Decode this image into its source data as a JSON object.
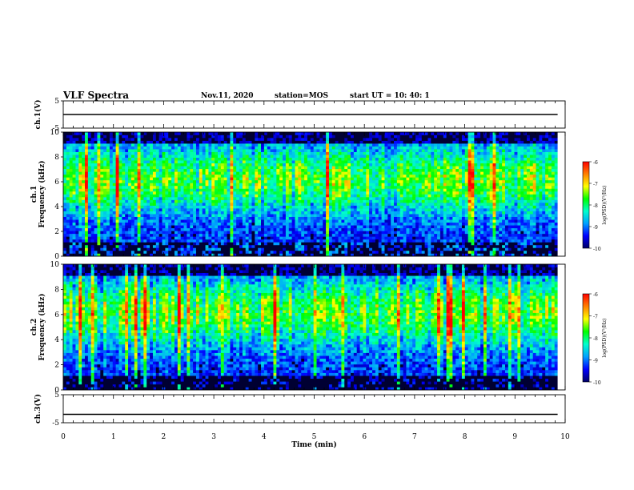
{
  "header": {
    "title": "VLF Spectra",
    "date": "Nov.11, 2020",
    "station": "station=MOS",
    "start": "start UT =  10: 40: 1"
  },
  "colors": {
    "colormap": [
      "#000066",
      "#0000ff",
      "#00a0ff",
      "#00ffcc",
      "#00ff00",
      "#ffff00",
      "#ff8000",
      "#ff0000"
    ],
    "trace": "#000000",
    "axis": "#000000"
  },
  "chart_data": [
    {
      "type": "line",
      "panel": "ch1-voltage",
      "ylabel": "ch.1(V)",
      "ylim": [
        -5,
        5
      ],
      "yticks": [
        "5",
        "-5"
      ],
      "xlim": [
        0,
        10
      ],
      "series": [
        {
          "x": [
            0,
            9.85
          ],
          "y": [
            0,
            0
          ]
        }
      ]
    },
    {
      "type": "heatmap",
      "panel": "ch1-spectrogram",
      "ylabel": "ch.1\nFrequency (kHz)",
      "ylim": [
        0,
        10
      ],
      "yticks": [
        "0",
        "2",
        "4",
        "6",
        "8",
        "10"
      ],
      "xlim": [
        0,
        9.85
      ],
      "seed": 11,
      "colorbar": {
        "label": "log(PSD)(V²/Hz)",
        "ticks": [
          "-6",
          "-7",
          "-8",
          "-9",
          "-10"
        ],
        "range": [
          -10,
          -6
        ]
      }
    },
    {
      "type": "heatmap",
      "panel": "ch2-spectrogram",
      "ylabel": "ch.2\nFrequency (kHz)",
      "ylim": [
        0,
        10
      ],
      "yticks": [
        "0",
        "2",
        "4",
        "6",
        "8",
        "10"
      ],
      "xlim": [
        0,
        9.85
      ],
      "seed": 29,
      "colorbar": {
        "label": "log(PSD)(V²/Hz)",
        "ticks": [
          "-6",
          "-7",
          "-8",
          "-9",
          "-10"
        ],
        "range": [
          -10,
          -6
        ]
      }
    },
    {
      "type": "line",
      "panel": "ch3-voltage",
      "ylabel": "ch.3(V)",
      "ylim": [
        -5,
        5
      ],
      "yticks": [
        "5",
        "-5"
      ],
      "xlim": [
        0,
        10
      ],
      "xlabel": "Time (min)",
      "xticks": [
        "0",
        "1",
        "2",
        "3",
        "4",
        "5",
        "6",
        "7",
        "8",
        "9",
        "10"
      ],
      "series": [
        {
          "x": [
            0,
            9.85
          ],
          "y": [
            -2,
            -2
          ]
        }
      ]
    }
  ]
}
